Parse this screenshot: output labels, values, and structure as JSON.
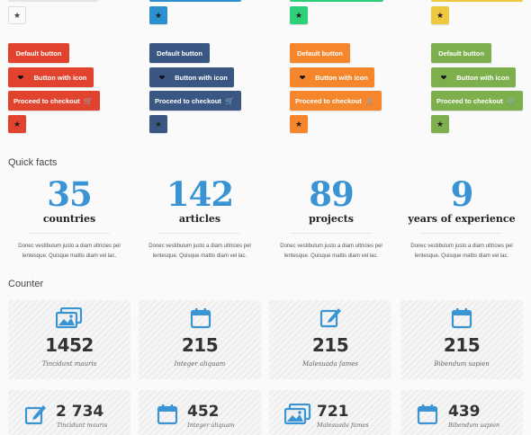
{
  "colors": {
    "red": "#e2432e",
    "navy": "#3a5682",
    "orange": "#f5862c",
    "green": "#7db04c",
    "blue_top": "#2c8fcf",
    "teal_top": "#2ecf79",
    "yellow_top": "#f0c840",
    "accent_blue": "#3a94d4"
  },
  "buttons": {
    "default_label": "Default button",
    "icon_label": "Button with icon",
    "checkout_label": "Proceed to checkout",
    "heart_icon": "heart-icon",
    "cart_icon": "cart-icon",
    "star_icon": "star-icon"
  },
  "quick_facts": {
    "title": "Quick facts",
    "items": [
      {
        "number": "35",
        "label": "countries",
        "desc": "Donec vestibulum justo a diam ultricies pel lentesque. Quisque mattis diam vel lac."
      },
      {
        "number": "142",
        "label": "articles",
        "desc": "Donec vestibulum justo a diam ultricies pel lentesque. Quisque mattis diam vel lac."
      },
      {
        "number": "89",
        "label": "projects",
        "desc": "Donec vestibulum justo a diam ultricies pel lentesque. Quisque mattis diam vel lac."
      },
      {
        "number": "9",
        "label": "years of experience",
        "desc": "Donec vestibulum justo a diam ultricies pel lentesque. Quisque mattis diam vel lac."
      }
    ]
  },
  "counter": {
    "title": "Counter",
    "row1": [
      {
        "icon": "pictures-icon",
        "number": "1452",
        "label": "Tincidunt mauris"
      },
      {
        "icon": "calendar-icon",
        "number": "215",
        "label": "Integer aliquam"
      },
      {
        "icon": "edit-icon",
        "number": "215",
        "label": "Malesuada fames"
      },
      {
        "icon": "calendar-icon",
        "number": "215",
        "label": "Bibendum sapien"
      }
    ],
    "row2": [
      {
        "icon": "edit-icon",
        "number": "2 734",
        "label": "Tincidunt mauris"
      },
      {
        "icon": "calendar-icon",
        "number": "452",
        "label": "Integer aliquam"
      },
      {
        "icon": "pictures-icon",
        "number": "721",
        "label": "Malesuada fames"
      },
      {
        "icon": "calendar-icon",
        "number": "439",
        "label": "Bibendum sapien"
      }
    ]
  }
}
